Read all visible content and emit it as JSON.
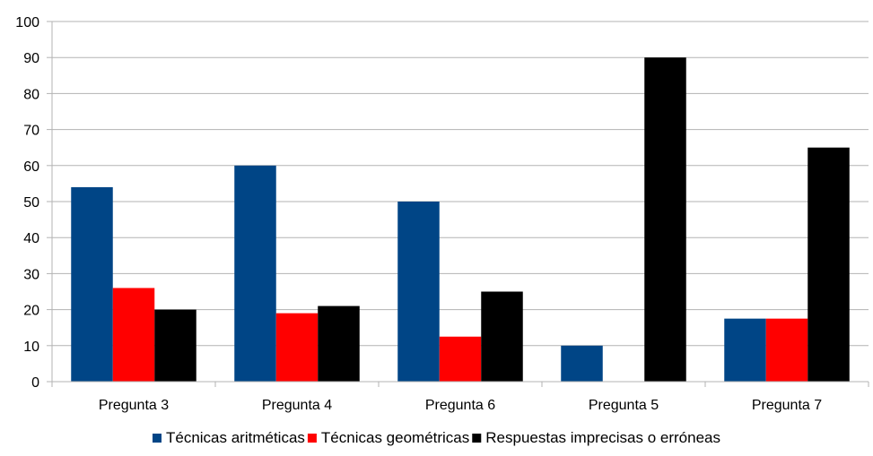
{
  "chart_data": {
    "type": "bar",
    "categories": [
      "Pregunta 3",
      "Pregunta 4",
      "Pregunta 6",
      "Pregunta 5",
      "Pregunta 7"
    ],
    "series": [
      {
        "name": "Técnicas aritméticas",
        "color": "#004586",
        "values": [
          54,
          60,
          50,
          10,
          17.5
        ]
      },
      {
        "name": "Técnicas geométricas",
        "color": "#ff0000",
        "values": [
          26,
          19,
          12.5,
          0,
          17.5
        ]
      },
      {
        "name": "Respuestas imprecisas o erróneas",
        "color": "#000000",
        "values": [
          20,
          21,
          25,
          90,
          65
        ]
      }
    ],
    "ylim": [
      0,
      100
    ],
    "yticks": [
      0,
      10,
      20,
      30,
      40,
      50,
      60,
      70,
      80,
      90,
      100
    ],
    "grid": true,
    "legend_position": "bottom",
    "grid_color": "#b3b3b3",
    "axis_color": "#b3b3b3"
  }
}
